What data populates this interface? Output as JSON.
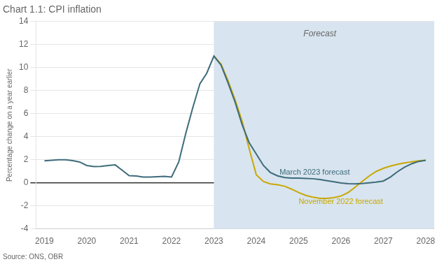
{
  "chart_data": {
    "type": "line",
    "title": "Chart 1.1: CPI inflation",
    "y_label": "Percentage change on a year earlier",
    "source": "Source: ONS, OBR",
    "forecast_start": 2023.0,
    "forecast_color": "#d8e4ef",
    "xlim": [
      2018.8,
      2028.2
    ],
    "ylim": [
      -4,
      14
    ],
    "xticks": [
      2019,
      2020,
      2021,
      2022,
      2023,
      2024,
      2025,
      2026,
      2027,
      2028
    ],
    "yticks": [
      -4,
      -2,
      0,
      2,
      4,
      6,
      8,
      10,
      12,
      14
    ],
    "grid": "y",
    "series": [
      {
        "name": "March 2023 forecast",
        "color": "#3d6b7a",
        "x": [
          2019.0,
          2019.17,
          2019.33,
          2019.5,
          2019.67,
          2019.83,
          2020.0,
          2020.17,
          2020.33,
          2020.5,
          2020.67,
          2020.83,
          2021.0,
          2021.17,
          2021.33,
          2021.5,
          2021.67,
          2021.83,
          2022.0,
          2022.17,
          2022.33,
          2022.5,
          2022.67,
          2022.83,
          2023.0,
          2023.17,
          2023.33,
          2023.5,
          2023.67,
          2023.83,
          2024.0,
          2024.17,
          2024.33,
          2024.5,
          2024.67,
          2024.83,
          2025.0,
          2025.17,
          2025.33,
          2025.5,
          2025.67,
          2025.83,
          2026.0,
          2026.17,
          2026.33,
          2026.5,
          2026.67,
          2026.83,
          2027.0,
          2027.17,
          2027.33,
          2027.5,
          2027.67,
          2027.83,
          2028.0
        ],
        "values": [
          1.9,
          1.95,
          2.0,
          2.0,
          1.92,
          1.8,
          1.5,
          1.4,
          1.42,
          1.5,
          1.55,
          1.1,
          0.62,
          0.58,
          0.5,
          0.5,
          0.52,
          0.55,
          0.5,
          1.8,
          4.2,
          6.5,
          8.6,
          9.5,
          11.0,
          10.2,
          8.7,
          7.0,
          5.0,
          3.5,
          2.5,
          1.5,
          0.9,
          0.6,
          0.45,
          0.4,
          0.4,
          0.38,
          0.35,
          0.28,
          0.18,
          0.08,
          -0.02,
          -0.08,
          -0.1,
          -0.06,
          0.0,
          0.05,
          0.15,
          0.5,
          0.95,
          1.35,
          1.65,
          1.85,
          1.95
        ]
      },
      {
        "name": "November 2022 forecast",
        "color": "#c9a800",
        "x": [
          2023.0,
          2023.17,
          2023.33,
          2023.5,
          2023.67,
          2023.83,
          2024.0,
          2024.17,
          2024.33,
          2024.5,
          2024.67,
          2024.83,
          2025.0,
          2025.17,
          2025.33,
          2025.5,
          2025.67,
          2025.83,
          2026.0,
          2026.17,
          2026.33,
          2026.5,
          2026.67,
          2026.83,
          2027.0,
          2027.17,
          2027.33,
          2027.5,
          2027.67,
          2027.83,
          2028.0
        ],
        "values": [
          11.0,
          10.3,
          8.9,
          7.2,
          5.3,
          3.0,
          0.7,
          0.1,
          -0.1,
          -0.18,
          -0.3,
          -0.55,
          -0.85,
          -1.1,
          -1.25,
          -1.35,
          -1.35,
          -1.3,
          -1.15,
          -0.85,
          -0.4,
          0.12,
          0.6,
          0.98,
          1.25,
          1.45,
          1.6,
          1.72,
          1.82,
          1.9,
          1.95
        ]
      }
    ],
    "annotations": [
      {
        "text": "Forecast",
        "x": 2025.5,
        "y": 13.3
      },
      {
        "text": "March 2023 forecast",
        "x": 2024.55,
        "y": 0.9,
        "color": "#3d6b7a"
      },
      {
        "text": "November 2022 forecast",
        "x": 2025.0,
        "y": -1.65,
        "color": "#c9a800"
      }
    ]
  }
}
